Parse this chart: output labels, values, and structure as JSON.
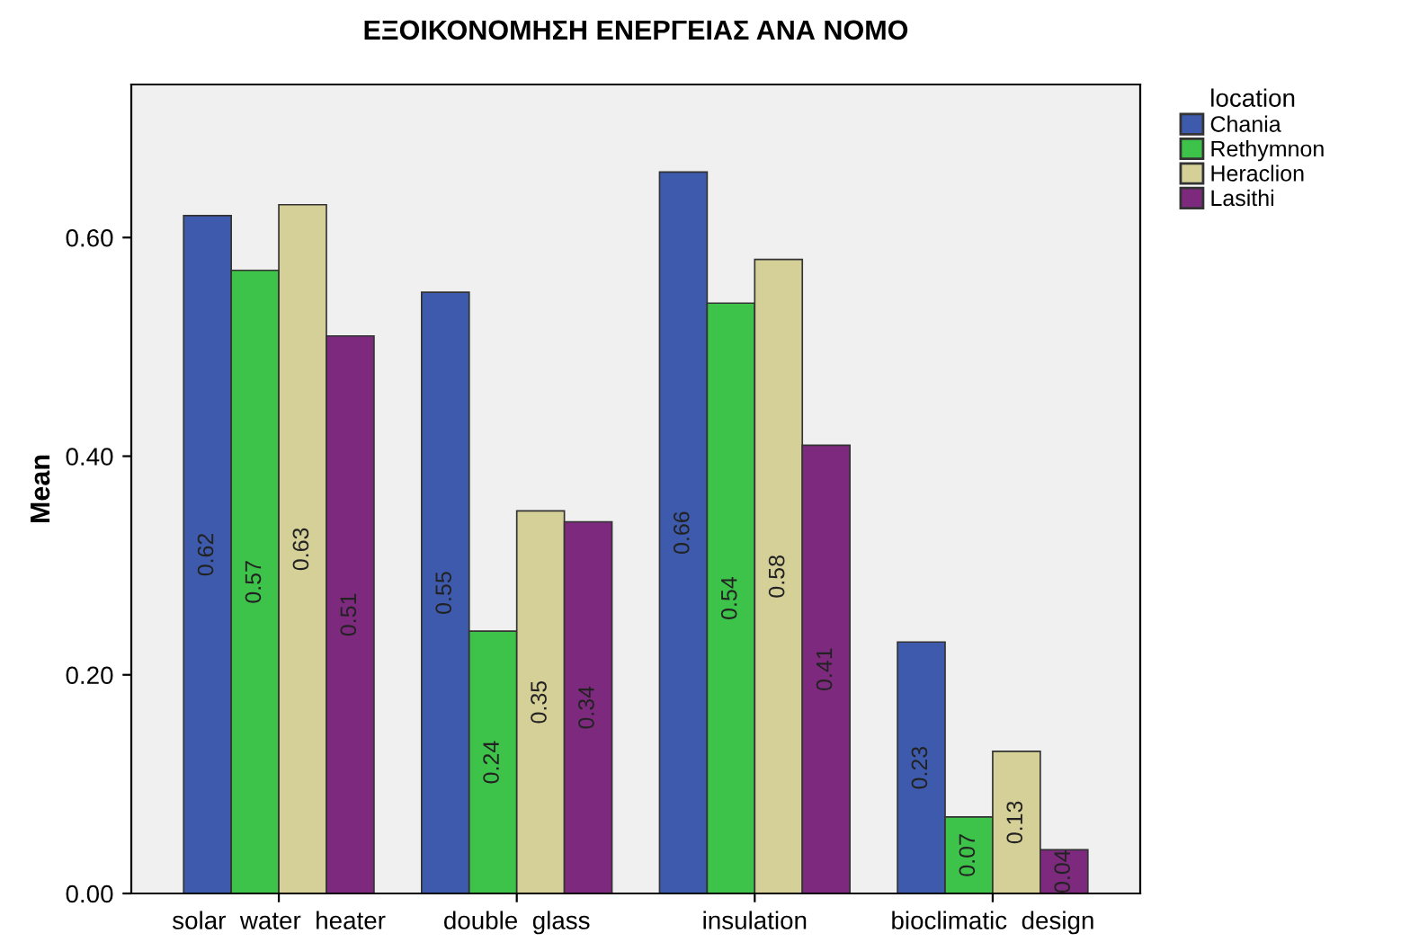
{
  "chart_data": {
    "type": "bar",
    "title": "ΕΞΟΙΚΟΝΟΜΗΣΗ ΕΝΕΡΓΕΙΑΣ ΑΝΑ ΝΟΜΟ",
    "ylabel": "Mean",
    "legend_title": "location",
    "categories": [
      "solar  water  heater",
      "double  glass",
      "insulation",
      "bioclimatic  design"
    ],
    "series": [
      {
        "name": "Chania",
        "color": "#3e5aac",
        "values": [
          0.62,
          0.55,
          0.66,
          0.23
        ]
      },
      {
        "name": "Rethymnon",
        "color": "#3ec34a",
        "values": [
          0.57,
          0.24,
          0.54,
          0.07
        ]
      },
      {
        "name": "Heraclion",
        "color": "#d5cf98",
        "values": [
          0.63,
          0.35,
          0.58,
          0.13
        ]
      },
      {
        "name": "Lasithi",
        "color": "#7d2a7e",
        "values": [
          0.51,
          0.34,
          0.41,
          0.04
        ]
      }
    ],
    "ylim": [
      0,
      0.74
    ],
    "yticks": [
      {
        "value": 0,
        "label": "0.00"
      },
      {
        "value": 0.2,
        "label": "0.20"
      },
      {
        "value": 0.4,
        "label": "0.40"
      },
      {
        "value": 0.6,
        "label": "0.60"
      }
    ],
    "data_labels": true,
    "legend": "top right",
    "grid": false
  }
}
